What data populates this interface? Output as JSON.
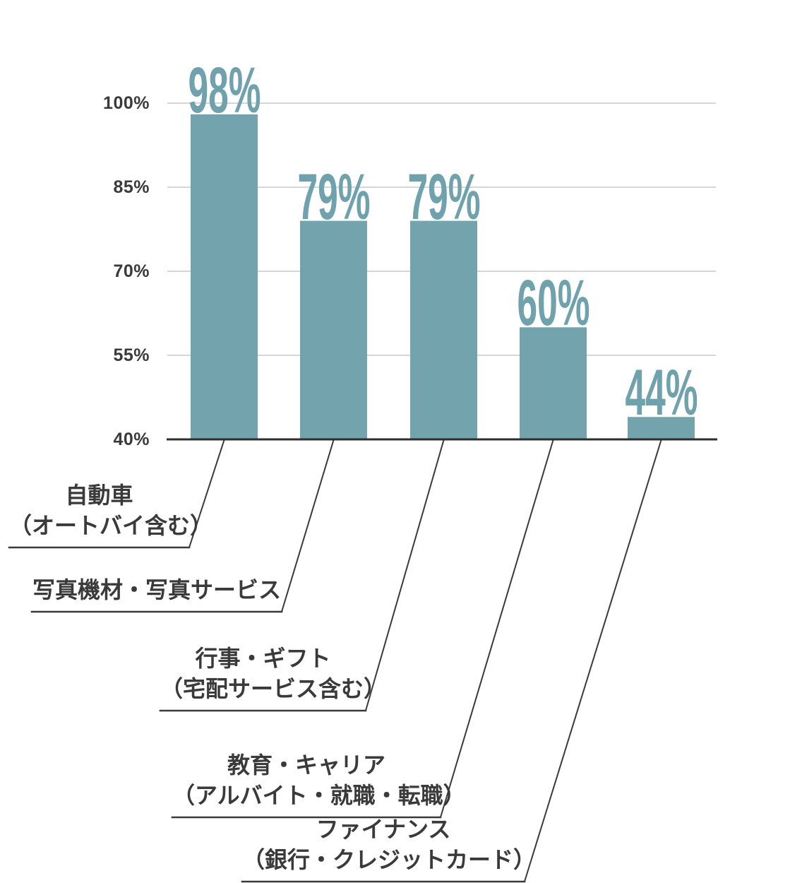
{
  "chart_data": {
    "type": "bar",
    "title": "",
    "categories": [
      "自動車（オートバイ含む）",
      "写真機材・写真サービス",
      "行事・ギフト（宅配サービス含む）",
      "教育・キャリア（アルバイト・就職・転職）",
      "ファイナンス（銀行・クレジットカード）"
    ],
    "category_lines": [
      [
        "自動車",
        "（オートバイ含む）"
      ],
      [
        "写真機材・写真サービス"
      ],
      [
        "行事・ギフト",
        "（宅配サービス含む）"
      ],
      [
        "教育・キャリア",
        "（アルバイト・就職・転職）"
      ],
      [
        "ファイナンス",
        "（銀行・クレジットカード）"
      ]
    ],
    "values": [
      98,
      79,
      79,
      60,
      44
    ],
    "value_labels": [
      "98%",
      "79%",
      "79%",
      "60%",
      "44%"
    ],
    "yticks": [
      "100%",
      "85%",
      "70%",
      "55%",
      "40%"
    ],
    "ylim": [
      40,
      100
    ],
    "grid": true,
    "legend": false,
    "colors": {
      "bar": "#73a4ae",
      "value_text": "#6fa2ad",
      "grid": "#c9c9c9",
      "axis": "#2e2e2e",
      "leader": "#3a3a3a",
      "label_text": "#3a3a3a"
    }
  }
}
